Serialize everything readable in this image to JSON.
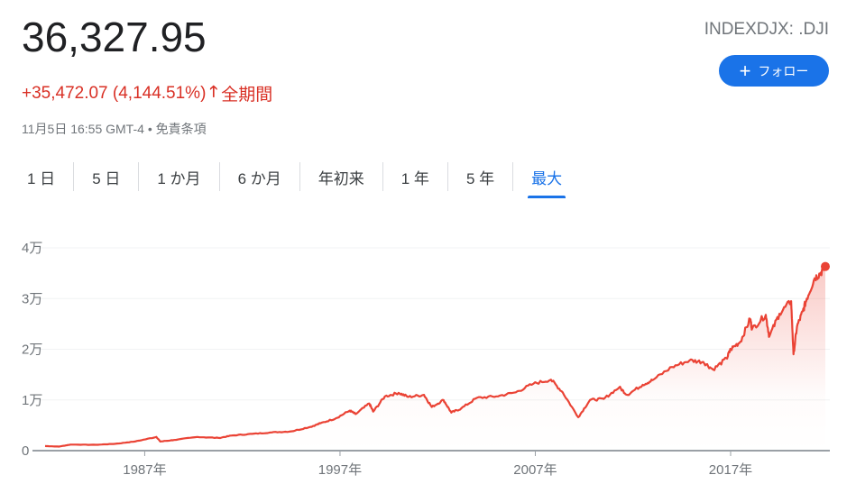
{
  "header": {
    "price": "36,327.95",
    "change": "+35,472.07 (4,144.51%)",
    "arrow_icon": "arrow-up-icon",
    "period": "全期間",
    "timestamp": "11月5日 16:55 GMT-4",
    "separator": "•",
    "disclaimer": "免責条項",
    "ticker": "INDEXDJX: .DJI",
    "follow_label": "フォロー",
    "follow_icon": "+"
  },
  "tabs": [
    {
      "label": "1 日"
    },
    {
      "label": "5 日"
    },
    {
      "label": "1 か月"
    },
    {
      "label": "6 か月"
    },
    {
      "label": "年初来"
    },
    {
      "label": "1 年"
    },
    {
      "label": "5 年"
    },
    {
      "label": "最大",
      "active": true
    }
  ],
  "colors": {
    "line": "#ea4335",
    "accent": "#1a73e8",
    "change": "#d93025"
  },
  "chart_data": {
    "type": "area",
    "x_ticks": [
      1987,
      1997,
      2007,
      2017
    ],
    "x_tick_labels": [
      "1987年",
      "1997年",
      "2007年",
      "2017年"
    ],
    "y_ticks": [
      0,
      10000,
      20000,
      30000,
      40000
    ],
    "y_tick_labels": [
      "0",
      "1万",
      "2万",
      "3万",
      "4万"
    ],
    "xlim": [
      1981.9,
      2021.85
    ],
    "ylim": [
      0,
      40000
    ],
    "grid": true,
    "series": [
      {
        "x": [
          1981.9,
          1982.6,
          1983.2,
          1984.5,
          1985.5,
          1986.5,
          1987.6,
          1987.8,
          1988.5,
          1989.7,
          1990.8,
          1991.5,
          1992.5,
          1993.5,
          1994.5,
          1995.5,
          1996.0,
          1996.8,
          1997.5,
          1997.8,
          1998.5,
          1998.7,
          1999.3,
          2000.0,
          2000.5,
          2001.3,
          2001.7,
          2002.3,
          2002.7,
          2003.2,
          2004.0,
          2005.0,
          2006.0,
          2006.9,
          2007.8,
          2008.4,
          2009.2,
          2009.8,
          2010.5,
          2011.3,
          2011.7,
          2012.5,
          2013.0,
          2014.0,
          2014.9,
          2015.6,
          2016.1,
          2016.8,
          2017.0,
          2017.5,
          2018.0,
          2018.1,
          2018.8,
          2018.98,
          2019.5,
          2020.1,
          2020.22,
          2020.4,
          2020.7,
          2020.9,
          2021.3,
          2021.6,
          2021.85
        ],
        "y": [
          900,
          800,
          1200,
          1150,
          1350,
          1800,
          2700,
          1800,
          2100,
          2700,
          2500,
          3000,
          3300,
          3600,
          3800,
          4700,
          5400,
          6400,
          7900,
          7200,
          9300,
          7700,
          10700,
          11400,
          10600,
          11000,
          8600,
          10000,
          7500,
          8300,
          10400,
          10700,
          11500,
          13200,
          14000,
          11500,
          6600,
          10000,
          10200,
          12500,
          11000,
          13000,
          13900,
          16500,
          17800,
          17500,
          16000,
          18200,
          20000,
          21500,
          26000,
          24000,
          26800,
          22500,
          27000,
          29500,
          19000,
          24500,
          27500,
          30000,
          34000,
          35000,
          36328
        ],
        "end_marker": true
      }
    ]
  }
}
